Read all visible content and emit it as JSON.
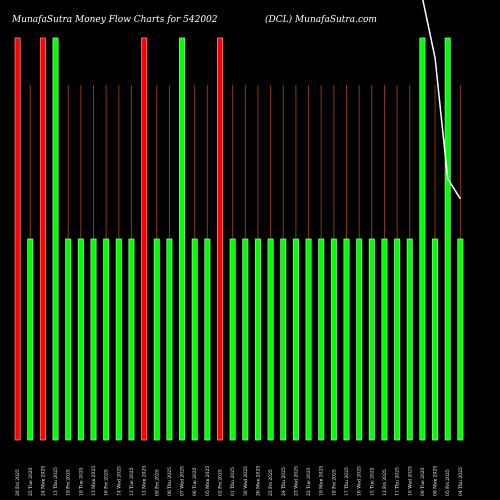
{
  "chart_data": {
    "type": "bar",
    "title": "MunafaSutra  Money Flow  Charts for 542002",
    "subtitle": "(DCL) MunafaSutra.com",
    "colors": {
      "background": "#000000",
      "up": "#00ff00",
      "up_edge": "#7fff7f",
      "down": "#ff0000",
      "down_edge": "#ff8080",
      "guide": "#8b3a0f",
      "line": "#ffffff"
    },
    "ylim": [
      0,
      100
    ],
    "categories": [
      "29 Fri 2025",
      "25 Tue 2025",
      "24 Mon 2025",
      "13 Thu 2025",
      "19 Fri 2025",
      "18 Tue 2025",
      "13 Mon 2025",
      "16 Fri 2025",
      "14 Wed 2025",
      "13 Tue 2025",
      "12 Mon 2025",
      "09 Fri 2025",
      "08 Thu 2025",
      "07 Wed 2025",
      "06 Tue 2025",
      "05 Mon 2025",
      "02 Fri 2025",
      "01 Thu 2025",
      "30 Wed 2025",
      "26 Mon 2025",
      "25 Fri 2025",
      "24 Thu 2025",
      "23 Wed 2025",
      "22 Tue 2025",
      "19 Mon 2025",
      "18 Fri 2025",
      "17 Thu 2025",
      "16 Wed 2025",
      "15 Tue 2025",
      "12 Fri 2025",
      "11 Thu 2025",
      "10 Wed 2025",
      "09 Tue 2025",
      "08 Mon 2025",
      "05 Fri 2025",
      "04 Thu 2025"
    ],
    "values": [
      100,
      50,
      100,
      100,
      50,
      50,
      50,
      50,
      50,
      50,
      100,
      50,
      50,
      100,
      50,
      50,
      100,
      50,
      50,
      50,
      50,
      50,
      50,
      50,
      50,
      50,
      50,
      50,
      50,
      50,
      50,
      50,
      100,
      50,
      100,
      50
    ],
    "bar_colors": [
      "red",
      "green",
      "red",
      "green",
      "green",
      "green",
      "green",
      "green",
      "green",
      "green",
      "red",
      "green",
      "green",
      "green",
      "green",
      "green",
      "red",
      "green",
      "green",
      "green",
      "green",
      "green",
      "green",
      "green",
      "green",
      "green",
      "green",
      "green",
      "green",
      "green",
      "green",
      "green",
      "green",
      "green",
      "green",
      "green"
    ],
    "line_series": {
      "values": [
        null,
        null,
        null,
        null,
        null,
        null,
        null,
        null,
        null,
        null,
        null,
        null,
        null,
        null,
        null,
        null,
        null,
        null,
        null,
        null,
        null,
        null,
        null,
        null,
        null,
        null,
        null,
        null,
        null,
        null,
        null,
        null,
        110,
        95,
        65,
        60
      ]
    },
    "grid": false
  }
}
